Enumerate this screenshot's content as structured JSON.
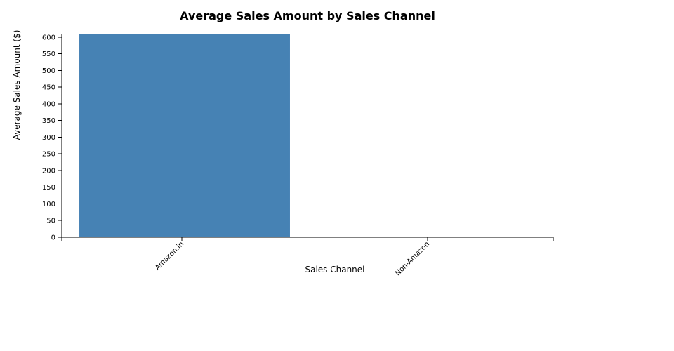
{
  "chart_data": {
    "type": "bar",
    "title": "Average Sales Amount by Sales Channel",
    "xlabel": "Sales Channel",
    "ylabel": "Average Sales Amount ($)",
    "categories": [
      "Amazon.in",
      "Non-Amazon"
    ],
    "values": [
      608.5,
      0
    ],
    "ylim": [
      0,
      610
    ],
    "yticks": [
      "0",
      "50",
      "100",
      "150",
      "200",
      "250",
      "300",
      "350",
      "400",
      "450",
      "500",
      "550",
      "600"
    ],
    "bar_color": "#4682b4",
    "grid": false,
    "legend": "none"
  }
}
